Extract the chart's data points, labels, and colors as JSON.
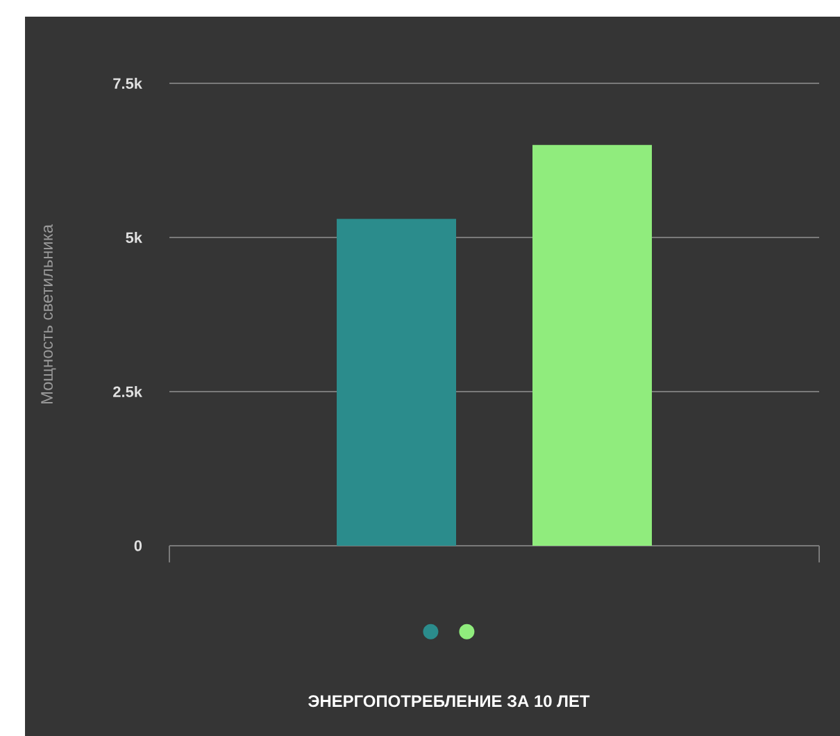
{
  "chart_data": {
    "type": "bar",
    "title": "ЭНЕРГОПОТРЕБЛЕНИЕ ЗА 10 ЛЕТ",
    "ylabel": "Мощность светильника",
    "categories": [
      null
    ],
    "series": [
      {
        "color": "#2b8c8c",
        "values": [
          5300
        ]
      },
      {
        "color": "#90ec7d",
        "values": [
          6500
        ]
      }
    ],
    "ylim": [
      0,
      7500
    ],
    "yticks": [
      {
        "value": 0,
        "label": "0"
      },
      {
        "value": 2500,
        "label": "2.5k"
      },
      {
        "value": 5000,
        "label": "5k"
      },
      {
        "value": 7500,
        "label": "7.5k"
      }
    ],
    "grid": "y"
  }
}
